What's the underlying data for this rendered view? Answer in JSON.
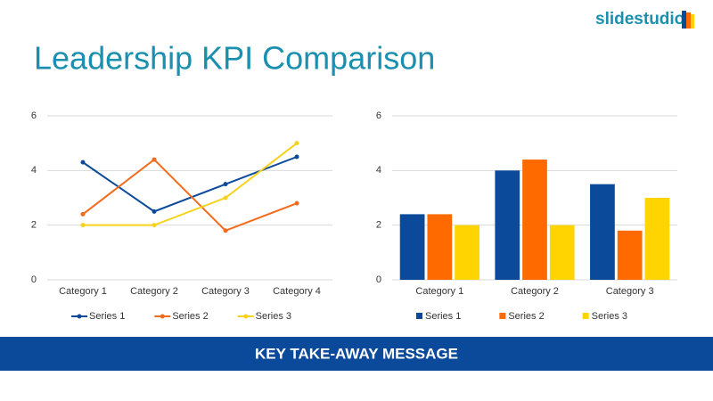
{
  "brand": "slidestudio",
  "title": "Leadership KPI Comparison",
  "banner": "KEY TAKE-AWAY MESSAGE",
  "chart_data": [
    {
      "type": "line",
      "categories": [
        "Category 1",
        "Category 2",
        "Category 3",
        "Category 4"
      ],
      "series": [
        {
          "name": "Series 1",
          "color": "#0b4a9a",
          "values": [
            4.3,
            2.5,
            3.5,
            4.5
          ]
        },
        {
          "name": "Series 2",
          "color": "#f26b1d",
          "values": [
            2.4,
            4.4,
            1.8,
            2.8
          ]
        },
        {
          "name": "Series 3",
          "color": "#f7d21c",
          "values": [
            2,
            2,
            3,
            5
          ]
        }
      ],
      "ylim": [
        0,
        6
      ],
      "yticks": [
        0,
        2,
        4,
        6
      ],
      "grid": true,
      "legend": "bottom"
    },
    {
      "type": "bar",
      "categories": [
        "Category 1",
        "Category 2",
        "Category 3"
      ],
      "series": [
        {
          "name": "Series 1",
          "color": "#0b4a9a",
          "values": [
            2.4,
            4.0,
            3.5
          ]
        },
        {
          "name": "Series 2",
          "color": "#ff6a00",
          "values": [
            2.4,
            4.4,
            1.8
          ]
        },
        {
          "name": "Series 3",
          "color": "#ffd400",
          "values": [
            2,
            2,
            3
          ]
        }
      ],
      "ylim": [
        0,
        6
      ],
      "yticks": [
        0,
        2,
        4,
        6
      ],
      "grid": true,
      "legend": "bottom"
    }
  ]
}
